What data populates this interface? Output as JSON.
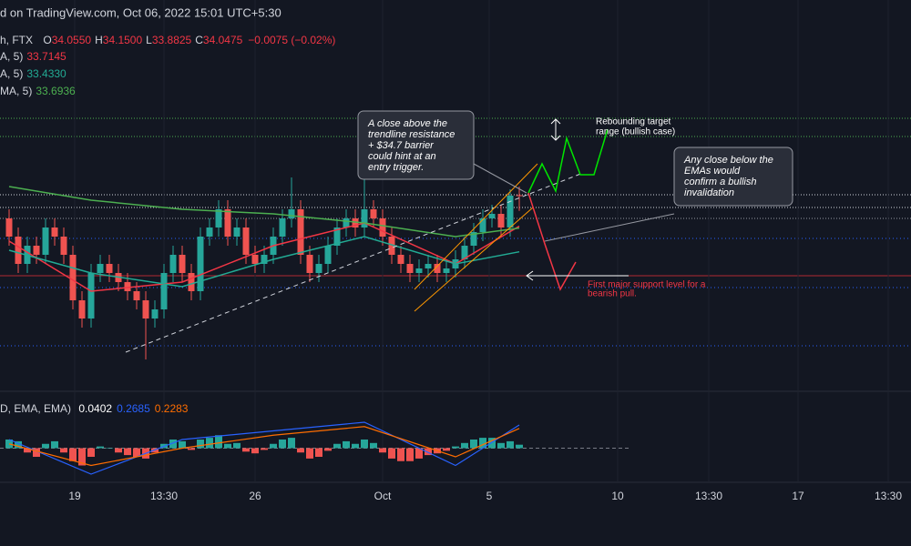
{
  "header": {
    "published": "d on TradingView.com, Oct 06, 2022 15:01 UTC+5:30",
    "symbol": "h, FTX",
    "ohlc": [
      {
        "key": "O",
        "value": "34.0550"
      },
      {
        "key": "H",
        "value": "34.1500"
      },
      {
        "key": "L",
        "value": "33.8825"
      },
      {
        "key": "C",
        "value": "34.0475"
      }
    ],
    "change": "−0.0075 (−0.02%)",
    "indicators": [
      {
        "label": "A, 5)",
        "value": "33.7145",
        "color": "#f23645"
      },
      {
        "label": "A, 5)",
        "value": "33.4330",
        "color": "#22ab94"
      },
      {
        "label": "MA, 5)",
        "value": "33.6936",
        "color": "#4caf50"
      }
    ]
  },
  "chart_data": [
    {
      "type": "candlestick",
      "up_color": "#26a69a",
      "down_color": "#ef5350",
      "open": [
        33.8,
        33.6,
        33.3,
        33.5,
        33.4,
        33.7,
        33.6,
        33.4,
        32.9,
        32.7,
        33.2,
        33.3,
        33.2,
        33.1,
        33.0,
        32.9,
        32.7,
        32.8,
        33.2,
        33.4,
        33.2,
        33.0,
        33.6,
        33.7,
        33.9,
        33.6,
        33.7,
        33.4,
        33.3,
        33.4,
        33.6,
        33.8,
        33.9,
        33.4,
        33.2,
        33.3,
        33.5,
        33.7,
        33.8,
        33.7,
        33.9,
        33.8,
        33.6,
        33.4,
        33.3,
        33.2,
        33.25,
        33.3,
        33.2,
        33.25,
        33.35,
        33.5,
        33.65,
        33.8,
        33.85,
        33.7,
        34.055
      ],
      "high": [
        33.9,
        33.7,
        33.6,
        33.6,
        33.8,
        33.8,
        33.7,
        33.5,
        33.0,
        33.3,
        33.4,
        33.4,
        33.3,
        33.2,
        33.1,
        33.0,
        32.9,
        33.3,
        33.5,
        33.5,
        33.3,
        33.7,
        33.8,
        34.0,
        34.0,
        33.8,
        33.8,
        33.5,
        33.5,
        33.7,
        33.9,
        34.25,
        34.0,
        33.5,
        33.4,
        33.6,
        33.8,
        33.9,
        33.9,
        34.3,
        34.0,
        33.9,
        33.7,
        33.5,
        33.4,
        33.35,
        33.4,
        33.4,
        33.35,
        33.45,
        33.6,
        33.75,
        33.9,
        33.95,
        33.95,
        34.12,
        34.15
      ],
      "low": [
        33.5,
        33.2,
        33.2,
        33.3,
        33.3,
        33.5,
        33.3,
        32.8,
        32.6,
        32.6,
        33.1,
        33.1,
        33.0,
        32.9,
        32.8,
        32.25,
        32.6,
        32.7,
        33.1,
        33.1,
        32.9,
        32.9,
        33.5,
        33.6,
        33.5,
        33.5,
        33.3,
        33.2,
        33.2,
        33.3,
        33.5,
        33.7,
        33.3,
        33.1,
        33.1,
        33.2,
        33.4,
        33.6,
        33.6,
        33.6,
        33.7,
        33.5,
        33.3,
        33.2,
        33.1,
        33.1,
        33.15,
        33.1,
        33.1,
        33.15,
        33.25,
        33.4,
        33.55,
        33.7,
        33.6,
        33.6,
        33.8825
      ],
      "close": [
        33.6,
        33.3,
        33.5,
        33.4,
        33.7,
        33.6,
        33.4,
        32.9,
        32.7,
        33.2,
        33.3,
        33.2,
        33.1,
        33.0,
        32.9,
        32.7,
        32.8,
        33.2,
        33.4,
        33.2,
        33.0,
        33.6,
        33.7,
        33.9,
        33.6,
        33.7,
        33.4,
        33.3,
        33.4,
        33.6,
        33.8,
        33.9,
        33.4,
        33.2,
        33.3,
        33.5,
        33.7,
        33.8,
        33.7,
        33.9,
        33.8,
        33.6,
        33.4,
        33.3,
        33.2,
        33.25,
        33.3,
        33.2,
        33.25,
        33.35,
        33.5,
        33.65,
        33.8,
        33.85,
        33.7,
        34.05,
        34.0475
      ],
      "lines": [
        {
          "color": "#f23645",
          "x": [
            1,
            10,
            20,
            30,
            40,
            50,
            57
          ],
          "values": [
            33.55,
            33.0,
            33.1,
            33.5,
            33.75,
            33.3,
            33.7145
          ]
        },
        {
          "color": "#22ab94",
          "x": [
            1,
            10,
            20,
            30,
            40,
            50,
            57
          ],
          "values": [
            33.45,
            33.2,
            33.05,
            33.35,
            33.6,
            33.3,
            33.433
          ]
        },
        {
          "color": "#4caf50",
          "x": [
            1,
            10,
            20,
            30,
            40,
            50,
            57
          ],
          "values": [
            34.15,
            34.0,
            33.9,
            33.85,
            33.75,
            33.6,
            33.6936
          ]
        }
      ],
      "xlim": [
        0,
        100
      ],
      "ylim": [
        32.0,
        36.2
      ],
      "xticks": [
        {
          "value": 8.2,
          "label": "19"
        },
        {
          "value": 18,
          "label": "13:30"
        },
        {
          "value": 28,
          "label": "26"
        },
        {
          "value": 42,
          "label": "Oct"
        },
        {
          "value": 53.7,
          "label": "5"
        },
        {
          "value": 67.8,
          "label": "10"
        },
        {
          "value": 77.8,
          "label": "13:30"
        },
        {
          "value": 87.6,
          "label": "17"
        },
        {
          "value": 97.5,
          "label": "13:30"
        }
      ],
      "annotations": {
        "entry": [
          "A close above the",
          "trendline resistance",
          "+ $34.7 barrier",
          "could hint at an",
          "entry trigger."
        ],
        "target": [
          "Rebounding target",
          "range (bullish case)"
        ],
        "invalidation": [
          "Any close below the",
          "EMAs would",
          "confirm a bullish",
          "invalidation"
        ],
        "support": [
          "First major support level for a",
          "bearish pull."
        ]
      }
    },
    {
      "type": "macd",
      "legend_label": "D, EMA, EMA)",
      "legend_values": [
        {
          "text": "0.0402",
          "color": "#ffffff"
        },
        {
          "text": "0.2685",
          "color": "#2962ff"
        },
        {
          "text": "0.2283",
          "color": "#ff6d00"
        }
      ],
      "histogram": [
        0.1,
        0.08,
        -0.05,
        -0.1,
        0.05,
        0.08,
        -0.05,
        -0.15,
        -0.2,
        -0.1,
        0.02,
        0.0,
        -0.05,
        -0.08,
        -0.1,
        -0.12,
        -0.05,
        0.05,
        0.1,
        0.08,
        -0.02,
        0.1,
        0.12,
        0.15,
        0.05,
        0.06,
        -0.04,
        -0.06,
        -0.02,
        0.05,
        0.1,
        0.12,
        -0.05,
        -0.12,
        -0.1,
        -0.03,
        0.05,
        0.08,
        0.05,
        0.1,
        0.06,
        -0.05,
        -0.12,
        -0.15,
        -0.15,
        -0.12,
        -0.08,
        -0.06,
        -0.03,
        0.02,
        0.06,
        0.1,
        0.12,
        0.12,
        0.06,
        0.08,
        0.0402
      ],
      "series": [
        {
          "color": "#2962ff",
          "x": [
            1,
            10,
            20,
            30,
            40,
            50,
            57
          ],
          "values": [
            0.1,
            -0.3,
            0.1,
            0.2,
            0.3,
            -0.2,
            0.2685
          ]
        },
        {
          "color": "#ff6d00",
          "x": [
            1,
            10,
            20,
            30,
            40,
            50,
            57
          ],
          "values": [
            0.05,
            -0.2,
            0.0,
            0.15,
            0.25,
            -0.1,
            0.2283
          ]
        }
      ],
      "ylim": [
        -0.5,
        0.5
      ]
    }
  ]
}
